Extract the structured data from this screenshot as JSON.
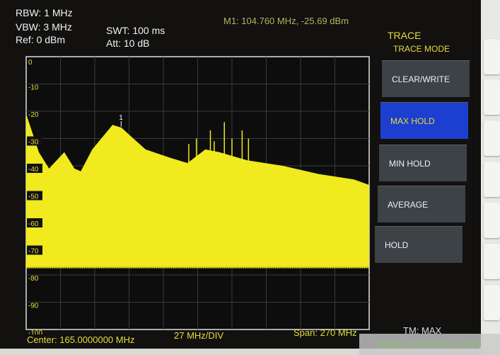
{
  "settings": {
    "rbw": "RBW: 1 MHz",
    "vbw": "VBW: 3 MHz",
    "ref": "Ref: 0 dBm",
    "swt": "SWT: 100 ms",
    "att": "Att: 10 dB"
  },
  "marker_readout": "M1: 104.760 MHz, -25.69 dBm",
  "menu": {
    "title": "TRACE",
    "subtitle": "TRACE MODE",
    "items": [
      {
        "label": "CLEAR/WRITE",
        "active": false
      },
      {
        "label": "MAX HOLD",
        "active": true
      },
      {
        "label": "MIN HOLD",
        "active": false
      },
      {
        "label": "AVERAGE",
        "active": false
      },
      {
        "label": "HOLD",
        "active": false
      }
    ]
  },
  "footer": {
    "center": "Center: 165.0000000 MHz",
    "div": "27 MHz/DIV",
    "span": "Span: 270 MHz",
    "trace_mode": "TM: MAX"
  },
  "watermark": "www.cntronics.com",
  "colors": {
    "trace": "#f0ea1e",
    "grid": "#3a3a3a",
    "background": "#121110",
    "accent": "#e6dc3c",
    "active_button": "#1c3fd0"
  },
  "chart_data": {
    "type": "area",
    "xlabel": "",
    "ylabel": "",
    "xlim": [
      30,
      300
    ],
    "ylim": [
      -100,
      0
    ],
    "y_ticks": [
      "0",
      "-10",
      "-20",
      "-30",
      "-40",
      "-50",
      "-60",
      "-70",
      "-80",
      "-90",
      "-100"
    ],
    "grid": true,
    "series": [
      {
        "x": [
          30,
          40,
          48,
          60,
          68,
          73,
          82,
          98,
          105,
          112,
          124,
          143,
          157,
          171,
          182,
          204,
          232,
          260,
          288,
          300
        ],
        "y": [
          -21,
          -35,
          -41,
          -35,
          -41,
          -42,
          -34,
          -25,
          -26,
          -29,
          -34,
          -37,
          -39,
          -34,
          -35,
          -38,
          -40,
          -43,
          -45,
          -47
        ]
      }
    ],
    "noise_floor_dbm": -77,
    "spurs": [
      {
        "x": 158,
        "y": -32
      },
      {
        "x": 164,
        "y": -30
      },
      {
        "x": 175,
        "y": -27
      },
      {
        "x": 178,
        "y": -31
      },
      {
        "x": 186,
        "y": -24
      },
      {
        "x": 192,
        "y": -30
      },
      {
        "x": 200,
        "y": -27
      },
      {
        "x": 205,
        "y": -30
      }
    ],
    "marker": {
      "label": "1",
      "x": 104.76,
      "y": -25.69
    }
  }
}
